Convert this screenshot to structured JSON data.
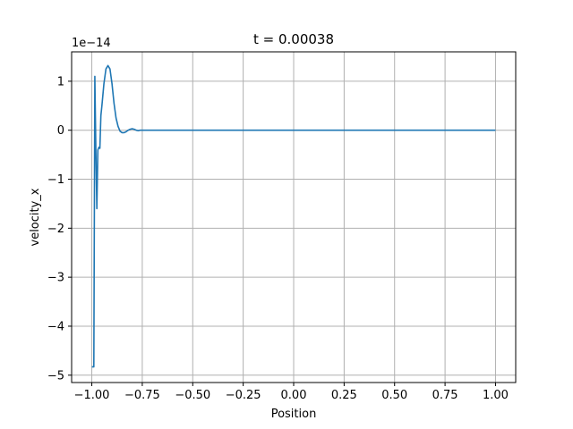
{
  "chart_data": {
    "type": "line",
    "title": "t = 0.00038",
    "xlabel": "Position",
    "ylabel": "velocity_x",
    "y_scale_label": "1e−14",
    "xlim": [
      -1.1,
      1.1
    ],
    "ylim": [
      -5.15,
      1.6
    ],
    "xticks": [
      -1.0,
      -0.75,
      -0.5,
      -0.25,
      0.0,
      0.25,
      0.5,
      0.75,
      1.0
    ],
    "xtick_labels": [
      "−1.00",
      "−0.75",
      "−0.50",
      "−0.25",
      "0.00",
      "0.25",
      "0.50",
      "0.75",
      "1.00"
    ],
    "yticks": [
      -5,
      -4,
      -3,
      -2,
      -1,
      0,
      1
    ],
    "ytick_labels": [
      "−5",
      "−4",
      "−3",
      "−2",
      "−1",
      "0",
      "1"
    ],
    "grid": true,
    "line_color": "#1f77b4",
    "series": [
      {
        "x": [
          -1.0,
          -0.99,
          -0.985,
          -0.98,
          -0.975,
          -0.97,
          -0.965,
          -0.96,
          -0.955,
          -0.95,
          -0.94,
          -0.93,
          -0.92,
          -0.91,
          -0.9,
          -0.89,
          -0.88,
          -0.87,
          -0.86,
          -0.85,
          -0.84,
          -0.83,
          -0.82,
          -0.81,
          -0.8,
          -0.79,
          -0.78,
          -0.77,
          -0.76,
          -0.75,
          -0.7,
          -0.6,
          -0.5,
          -0.25,
          0.0,
          0.25,
          0.5,
          0.75,
          1.0
        ],
        "y": [
          -4.83,
          -4.83,
          1.1,
          -0.4,
          -1.6,
          -0.4,
          -0.35,
          -0.37,
          0.3,
          0.5,
          0.95,
          1.25,
          1.32,
          1.25,
          0.95,
          0.55,
          0.25,
          0.08,
          -0.02,
          -0.05,
          -0.05,
          -0.03,
          0.0,
          0.02,
          0.03,
          0.02,
          0.0,
          -0.01,
          0.0,
          0.0,
          0.0,
          0.0,
          0.0,
          0.0,
          0.0,
          0.0,
          0.0,
          0.0,
          0.0
        ]
      }
    ]
  }
}
